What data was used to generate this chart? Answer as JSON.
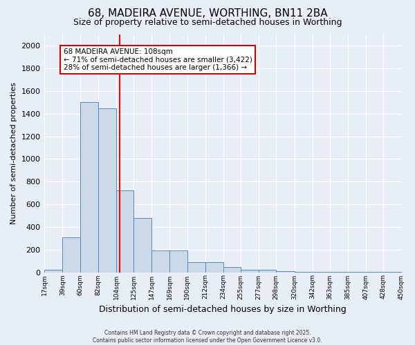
{
  "title": "68, MADEIRA AVENUE, WORTHING, BN11 2BA",
  "subtitle": "Size of property relative to semi-detached houses in Worthing",
  "xlabel": "Distribution of semi-detached houses by size in Worthing",
  "ylabel": "Number of semi-detached properties",
  "bin_labels": [
    "17sqm",
    "39sqm",
    "60sqm",
    "82sqm",
    "104sqm",
    "125sqm",
    "147sqm",
    "169sqm",
    "190sqm",
    "212sqm",
    "234sqm",
    "255sqm",
    "277sqm",
    "298sqm",
    "320sqm",
    "342sqm",
    "363sqm",
    "385sqm",
    "407sqm",
    "428sqm",
    "450sqm"
  ],
  "bin_edges": [
    17,
    39,
    60,
    82,
    104,
    125,
    147,
    169,
    190,
    212,
    234,
    255,
    277,
    298,
    320,
    342,
    363,
    385,
    407,
    428,
    450
  ],
  "bar_heights": [
    20,
    310,
    1500,
    1450,
    725,
    480,
    195,
    195,
    90,
    90,
    45,
    20,
    20,
    10,
    5,
    3,
    2,
    1,
    1,
    1,
    0
  ],
  "bar_color": "#ccd9e8",
  "bar_edge_color": "#5588bb",
  "red_line_x": 108,
  "ylim": [
    0,
    2100
  ],
  "yticks": [
    0,
    200,
    400,
    600,
    800,
    1000,
    1200,
    1400,
    1600,
    1800,
    2000
  ],
  "annotation_title": "68 MADEIRA AVENUE: 108sqm",
  "annotation_line1": "← 71% of semi-detached houses are smaller (3,422)",
  "annotation_line2": "28% of semi-detached houses are larger (1,366) →",
  "annotation_box_color": "#ffffff",
  "annotation_box_edge": "#cc0000",
  "footer_line1": "Contains HM Land Registry data © Crown copyright and database right 2025.",
  "footer_line2": "Contains public sector information licensed under the Open Government Licence v3.0.",
  "background_color": "#e8eef8",
  "grid_color": "#ffffff",
  "title_fontsize": 11,
  "subtitle_fontsize": 9,
  "ylabel_fontsize": 8,
  "xlabel_fontsize": 9
}
